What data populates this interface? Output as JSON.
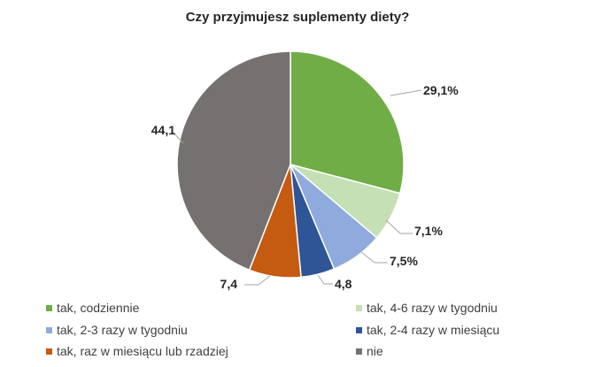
{
  "chart_data": {
    "type": "pie",
    "title": "Czy przyjmujesz suplementy diety?",
    "categories": [
      "tak, codziennie",
      "tak, 4-6 razy w tygodniu",
      "tak, 2-3 razy w tygodniu",
      "tak, 2-4 razy w miesiącu",
      "tak, raz w miesiącu lub rzadziej",
      "nie"
    ],
    "values": [
      29.1,
      7.1,
      7.5,
      4.8,
      7.4,
      44.1
    ],
    "data_labels": [
      "29,1%",
      "7,1%",
      "7,5%",
      "4,8",
      "7,4",
      "44,1"
    ],
    "colors": [
      "#70ad47",
      "#c5e0b4",
      "#8faadc",
      "#2f5597",
      "#c55a11",
      "#767171"
    ],
    "legend_position": "bottom"
  }
}
